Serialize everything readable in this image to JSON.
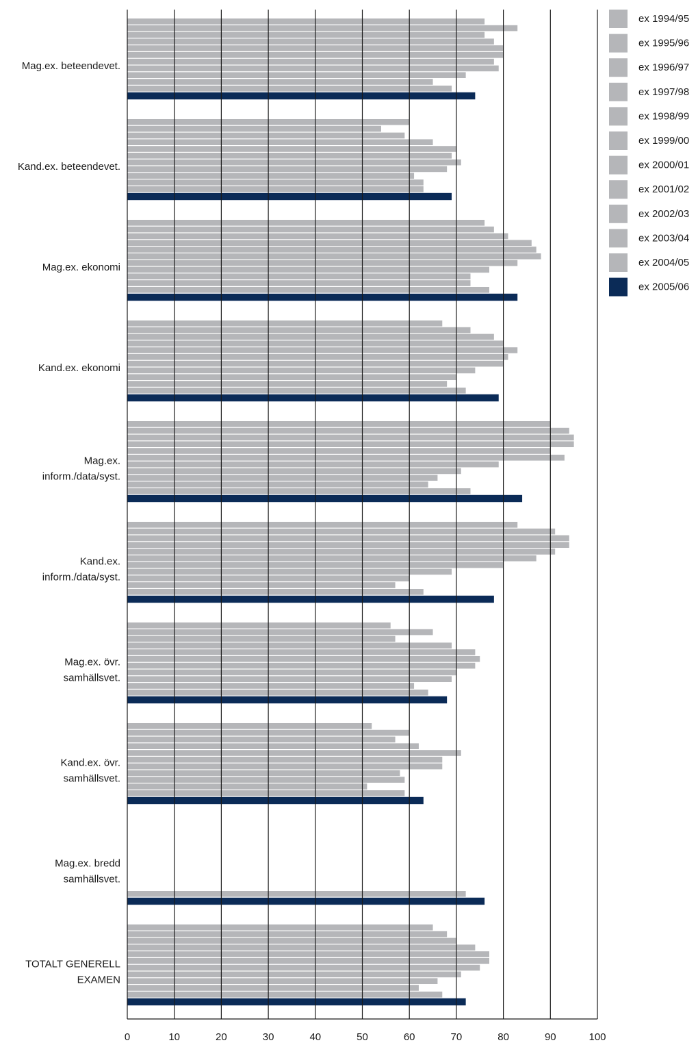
{
  "chart_data": {
    "type": "bar",
    "orientation": "horizontal",
    "title": "",
    "xlabel": "",
    "ylabel": "",
    "xlim": [
      0,
      100
    ],
    "x_ticks": [
      "0",
      "10",
      "20",
      "30",
      "40",
      "50",
      "60",
      "70",
      "80",
      "90",
      "100"
    ],
    "grid": "vertical",
    "legend_position": "top-right",
    "colors": {
      "older": "#b5b6b9",
      "latest": "#0b2b57",
      "grid": "#1a1a1a"
    },
    "categories": [
      [
        "Mag.ex. beteendevet."
      ],
      [
        "Kand.ex. beteendevet."
      ],
      [
        "Mag.ex. ekonomi"
      ],
      [
        "Kand.ex. ekonomi"
      ],
      [
        "Mag.ex.",
        "inform./data/syst."
      ],
      [
        "Kand.ex.",
        "inform./data/syst."
      ],
      [
        "Mag.ex. övr.",
        "samhällsvet."
      ],
      [
        "Kand.ex. övr.",
        "samhällsvet."
      ],
      [
        "Mag.ex. bredd",
        "samhällsvet."
      ],
      [
        "TOTALT GENERELL",
        "EXAMEN"
      ]
    ],
    "series": [
      {
        "name": "ex 1994/95",
        "values": [
          76,
          60,
          76,
          67,
          90,
          83,
          56,
          52,
          null,
          65
        ]
      },
      {
        "name": "ex 1995/96",
        "values": [
          83,
          54,
          78,
          73,
          94,
          91,
          65,
          60,
          null,
          68
        ]
      },
      {
        "name": "ex 1996/97",
        "values": [
          76,
          59,
          81,
          78,
          95,
          94,
          57,
          57,
          null,
          70
        ]
      },
      {
        "name": "ex 1997/98",
        "values": [
          78,
          65,
          86,
          80,
          95,
          94,
          69,
          62,
          null,
          74
        ]
      },
      {
        "name": "ex 1998/99",
        "values": [
          80,
          70,
          87,
          83,
          90,
          91,
          74,
          71,
          null,
          77
        ]
      },
      {
        "name": "ex 1999/00",
        "values": [
          80,
          69,
          88,
          81,
          93,
          87,
          75,
          67,
          null,
          77
        ]
      },
      {
        "name": "ex 2000/01",
        "values": [
          78,
          71,
          83,
          80,
          79,
          80,
          74,
          67,
          null,
          75
        ]
      },
      {
        "name": "ex 2001/02",
        "values": [
          79,
          68,
          77,
          74,
          71,
          69,
          70,
          58,
          null,
          71
        ]
      },
      {
        "name": "ex 2002/03",
        "values": [
          72,
          61,
          73,
          70,
          66,
          60,
          69,
          59,
          null,
          66
        ]
      },
      {
        "name": "ex 2003/04",
        "values": [
          65,
          63,
          73,
          68,
          64,
          57,
          61,
          51,
          null,
          62
        ]
      },
      {
        "name": "ex 2004/05",
        "values": [
          69,
          63,
          77,
          72,
          73,
          63,
          64,
          59,
          72,
          67
        ]
      },
      {
        "name": "ex 2005/06",
        "values": [
          74,
          69,
          83,
          79,
          84,
          78,
          68,
          63,
          76,
          72
        ]
      }
    ]
  }
}
